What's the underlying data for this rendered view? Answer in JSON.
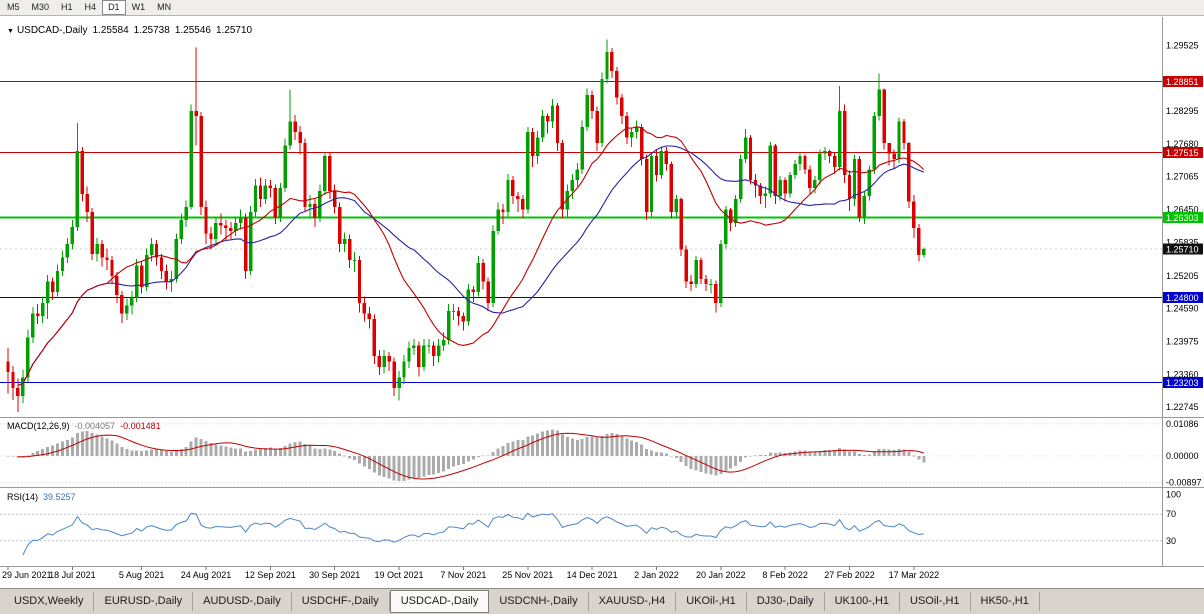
{
  "toolbar": {
    "timeframes": [
      "M5",
      "M30",
      "H1",
      "H4",
      "D1",
      "W1",
      "MN"
    ],
    "active": "D1"
  },
  "chart_header": {
    "symbol": "USDCAD-,Daily",
    "open": "1.25584",
    "high": "1.25738",
    "low": "1.25546",
    "close": "1.25710"
  },
  "indicators": {
    "macd": {
      "label": "MACD(12,26,9)",
      "value_main": "-0.004057",
      "value_signal": "-0.001481",
      "axis_labels": [
        "0.01086",
        "0.00000",
        "-0.00897"
      ],
      "axis_values": [
        0.01086,
        0.0,
        -0.00897
      ]
    },
    "rsi": {
      "label": "RSI(14)",
      "value": "39.5257",
      "axis_labels": [
        "100",
        "70",
        "30"
      ],
      "axis_values": [
        100,
        70,
        30
      ],
      "levels": [
        70,
        30
      ]
    }
  },
  "price_axis": {
    "labels": [
      "1.29525",
      "1.28295",
      "1.27680",
      "1.27065",
      "1.26450",
      "1.25835",
      "1.25205",
      "1.24590",
      "1.23975",
      "1.23360",
      "1.22745"
    ]
  },
  "levels": [
    {
      "price": 1.28851,
      "label": "1.28851",
      "color": "#cc0000",
      "width": 1
    },
    {
      "price": 1.27515,
      "label": "1.27515",
      "color": "#cc0000",
      "width": 1
    },
    {
      "price": 1.26303,
      "label": "1.26303",
      "color": "#00c400",
      "width": 2
    },
    {
      "price": 1.248,
      "label": "1.24800",
      "color": "#0000d0",
      "width": 1
    },
    {
      "price": 1.23203,
      "label": "1.23203",
      "color": "#0000d0",
      "width": 1
    }
  ],
  "current_price": {
    "value": 1.2571,
    "label": "1.25710",
    "tag_color": "#111111"
  },
  "tabs": {
    "items": [
      {
        "label": "USDX,Weekly",
        "active": false
      },
      {
        "label": "EURUSD-,Daily",
        "active": false
      },
      {
        "label": "AUDUSD-,Daily",
        "active": false
      },
      {
        "label": "USDCHF-,Daily",
        "active": false
      },
      {
        "label": "USDCAD-,Daily",
        "active": true
      },
      {
        "label": "USDCNH-,Daily",
        "active": false
      },
      {
        "label": "XAUUSD-,H4",
        "active": false
      },
      {
        "label": "UKOil-,H1",
        "active": false
      },
      {
        "label": "DJ30-,Daily",
        "active": false
      },
      {
        "label": "UK100-,H1",
        "active": false
      },
      {
        "label": "USOil-,H1",
        "active": false
      },
      {
        "label": "HK50-,H1",
        "active": false
      }
    ]
  },
  "chart_data": {
    "type": "candlestick",
    "title": "USDCAD-,Daily",
    "ylim": [
      1.2256,
      1.3006
    ],
    "macd_ylim": [
      -0.0105,
      0.0125
    ],
    "rsi_ylim": [
      -8,
      108
    ],
    "open_first": 1.236,
    "ma_periods": {
      "fast": 21,
      "slow": 34
    },
    "colors": {
      "up": "#00a000",
      "down": "#dd0000",
      "ma_fast": "#c00000",
      "ma_slow": "#2525a0",
      "macd_hist": "#ababab",
      "macd_signal": "#c00000",
      "rsi": "#4a86c8",
      "grid": "#c8c8c8"
    },
    "x_ticks": [
      {
        "label": "29 Jun 2021",
        "index": 0
      },
      {
        "label": "18 Jul 2021",
        "index": 13
      },
      {
        "label": "5 Aug 2021",
        "index": 27
      },
      {
        "label": "24 Aug 2021",
        "index": 40
      },
      {
        "label": "12 Sep 2021",
        "index": 53
      },
      {
        "label": "30 Sep 2021",
        "index": 66
      },
      {
        "label": "19 Oct 2021",
        "index": 79
      },
      {
        "label": "7 Nov 2021",
        "index": 92
      },
      {
        "label": "25 Nov 2021",
        "index": 105
      },
      {
        "label": "14 Dec 2021",
        "index": 118
      },
      {
        "label": "2 Jan 2022",
        "index": 131
      },
      {
        "label": "20 Jan 2022",
        "index": 144
      },
      {
        "label": "8 Feb 2022",
        "index": 157
      },
      {
        "label": "27 Feb 2022",
        "index": 170
      },
      {
        "label": "17 Mar 2022",
        "index": 183
      }
    ],
    "candles": [
      [
        1.2385,
        1.23,
        1.234
      ],
      [
        1.2352,
        1.2288,
        1.231
      ],
      [
        1.2328,
        1.2265,
        1.2295
      ],
      [
        1.2345,
        1.2282,
        1.233
      ],
      [
        1.242,
        1.2322,
        1.2405
      ],
      [
        1.2462,
        1.2395,
        1.245
      ],
      [
        1.2468,
        1.243,
        1.2445
      ],
      [
        1.2482,
        1.2432,
        1.247
      ],
      [
        1.2522,
        1.244,
        1.251
      ],
      [
        1.2518,
        1.2475,
        1.249
      ],
      [
        1.2542,
        1.2482,
        1.253
      ],
      [
        1.2568,
        1.252,
        1.2555
      ],
      [
        1.2592,
        1.2545,
        1.258
      ],
      [
        1.2625,
        1.257,
        1.2612
      ],
      [
        1.2807,
        1.2605,
        1.2755
      ],
      [
        1.2762,
        1.266,
        1.2674
      ],
      [
        1.2688,
        1.2622,
        1.264
      ],
      [
        1.2648,
        1.255,
        1.2562
      ],
      [
        1.2592,
        1.2548,
        1.258
      ],
      [
        1.2588,
        1.2538,
        1.2555
      ],
      [
        1.2572,
        1.2532,
        1.255
      ],
      [
        1.2558,
        1.2504,
        1.252
      ],
      [
        1.2528,
        1.247,
        1.2485
      ],
      [
        1.2492,
        1.2432,
        1.245
      ],
      [
        1.2478,
        1.2438,
        1.2465
      ],
      [
        1.2492,
        1.2448,
        1.248
      ],
      [
        1.2552,
        1.2472,
        1.254
      ],
      [
        1.2548,
        1.2488,
        1.25
      ],
      [
        1.2572,
        1.2492,
        1.256
      ],
      [
        1.2592,
        1.2548,
        1.258
      ],
      [
        1.2588,
        1.254,
        1.2555
      ],
      [
        1.2562,
        1.2515,
        1.253
      ],
      [
        1.2542,
        1.2495,
        1.251
      ],
      [
        1.253,
        1.249,
        1.2515
      ],
      [
        1.26,
        1.2508,
        1.259
      ],
      [
        1.2638,
        1.258,
        1.2625
      ],
      [
        1.2662,
        1.2612,
        1.265
      ],
      [
        1.2842,
        1.2645,
        1.283
      ],
      [
        1.2949,
        1.2765,
        1.282
      ],
      [
        1.2828,
        1.2635,
        1.265
      ],
      [
        1.2662,
        1.258,
        1.26
      ],
      [
        1.2612,
        1.257,
        1.259
      ],
      [
        1.2632,
        1.2582,
        1.262
      ],
      [
        1.2638,
        1.2598,
        1.2615
      ],
      [
        1.2625,
        1.2588,
        1.261
      ],
      [
        1.2622,
        1.259,
        1.2605
      ],
      [
        1.2632,
        1.2595,
        1.262
      ],
      [
        1.2645,
        1.2608,
        1.263
      ],
      [
        1.2638,
        1.2515,
        1.253
      ],
      [
        1.2652,
        1.2522,
        1.264
      ],
      [
        1.2702,
        1.2632,
        1.269
      ],
      [
        1.2705,
        1.265,
        1.2665
      ],
      [
        1.2702,
        1.2655,
        1.269
      ],
      [
        1.27,
        1.2668,
        1.2685
      ],
      [
        1.2692,
        1.2618,
        1.263
      ],
      [
        1.2695,
        1.2622,
        1.2685
      ],
      [
        1.2778,
        1.2678,
        1.2765
      ],
      [
        1.287,
        1.2758,
        1.281
      ],
      [
        1.2822,
        1.2775,
        1.279
      ],
      [
        1.2802,
        1.2748,
        1.277
      ],
      [
        1.2778,
        1.264,
        1.265
      ],
      [
        1.2672,
        1.2632,
        1.2655
      ],
      [
        1.2665,
        1.2612,
        1.263
      ],
      [
        1.2692,
        1.2622,
        1.268
      ],
      [
        1.2752,
        1.2672,
        1.2745
      ],
      [
        1.2752,
        1.2665,
        1.268
      ],
      [
        1.2692,
        1.2638,
        1.265
      ],
      [
        1.2658,
        1.2565,
        1.258
      ],
      [
        1.2602,
        1.2565,
        1.259
      ],
      [
        1.2598,
        1.2535,
        1.255
      ],
      [
        1.2565,
        1.2528,
        1.255
      ],
      [
        1.2558,
        1.2452,
        1.247
      ],
      [
        1.2482,
        1.2435,
        1.245
      ],
      [
        1.2462,
        1.2422,
        1.244
      ],
      [
        1.2448,
        1.2355,
        1.237
      ],
      [
        1.2382,
        1.2335,
        1.235
      ],
      [
        1.2382,
        1.2338,
        1.237
      ],
      [
        1.2378,
        1.2342,
        1.236
      ],
      [
        1.2368,
        1.2295,
        1.231
      ],
      [
        1.2342,
        1.2287,
        1.233
      ],
      [
        1.2372,
        1.2318,
        1.236
      ],
      [
        1.2398,
        1.2348,
        1.2385
      ],
      [
        1.2402,
        1.2372,
        1.239
      ],
      [
        1.2398,
        1.2332,
        1.235
      ],
      [
        1.2402,
        1.2342,
        1.239
      ],
      [
        1.2402,
        1.2375,
        1.239
      ],
      [
        1.2398,
        1.2352,
        1.237
      ],
      [
        1.2402,
        1.2358,
        1.239
      ],
      [
        1.2415,
        1.238,
        1.24
      ],
      [
        1.2468,
        1.2392,
        1.2455
      ],
      [
        1.2468,
        1.2438,
        1.2455
      ],
      [
        1.2462,
        1.2428,
        1.2445
      ],
      [
        1.2452,
        1.2418,
        1.2435
      ],
      [
        1.2505,
        1.2428,
        1.2495
      ],
      [
        1.2502,
        1.2472,
        1.249
      ],
      [
        1.2558,
        1.2482,
        1.2545
      ],
      [
        1.2552,
        1.2495,
        1.251
      ],
      [
        1.2518,
        1.2455,
        1.247
      ],
      [
        1.2615,
        1.2462,
        1.2605
      ],
      [
        1.2658,
        1.2598,
        1.2645
      ],
      [
        1.2655,
        1.2618,
        1.264
      ],
      [
        1.2712,
        1.2632,
        1.27
      ],
      [
        1.2708,
        1.2655,
        1.267
      ],
      [
        1.2678,
        1.264,
        1.2665
      ],
      [
        1.2672,
        1.2628,
        1.2645
      ],
      [
        1.28,
        1.2638,
        1.279
      ],
      [
        1.2798,
        1.2725,
        1.2745
      ],
      [
        1.2792,
        1.273,
        1.278
      ],
      [
        1.2832,
        1.2772,
        1.282
      ],
      [
        1.2825,
        1.2788,
        1.281
      ],
      [
        1.2852,
        1.2798,
        1.284
      ],
      [
        1.2845,
        1.2755,
        1.277
      ],
      [
        1.2775,
        1.2628,
        1.2645
      ],
      [
        1.2692,
        1.2632,
        1.268
      ],
      [
        1.2712,
        1.2665,
        1.27
      ],
      [
        1.2732,
        1.2688,
        1.272
      ],
      [
        1.2812,
        1.2712,
        1.28
      ],
      [
        1.2872,
        1.2792,
        1.286
      ],
      [
        1.2868,
        1.2815,
        1.283
      ],
      [
        1.2838,
        1.2755,
        1.277
      ],
      [
        1.2902,
        1.2762,
        1.289
      ],
      [
        1.2964,
        1.2882,
        1.294
      ],
      [
        1.2948,
        1.2892,
        1.2905
      ],
      [
        1.2912,
        1.2842,
        1.2855
      ],
      [
        1.2862,
        1.2805,
        1.282
      ],
      [
        1.2828,
        1.2768,
        1.278
      ],
      [
        1.2798,
        1.2762,
        1.279
      ],
      [
        1.2812,
        1.2778,
        1.28
      ],
      [
        1.2805,
        1.2728,
        1.274
      ],
      [
        1.2748,
        1.2625,
        1.264
      ],
      [
        1.2752,
        1.2632,
        1.2745
      ],
      [
        1.2758,
        1.2698,
        1.271
      ],
      [
        1.2762,
        1.2702,
        1.2755
      ],
      [
        1.2762,
        1.2718,
        1.273
      ],
      [
        1.2735,
        1.2628,
        1.264
      ],
      [
        1.2672,
        1.263,
        1.2665
      ],
      [
        1.2668,
        1.2558,
        1.257
      ],
      [
        1.2578,
        1.2498,
        1.251
      ],
      [
        1.2522,
        1.2492,
        1.2505
      ],
      [
        1.2558,
        1.2498,
        1.255
      ],
      [
        1.2555,
        1.2505,
        1.2515
      ],
      [
        1.2522,
        1.2492,
        1.2505
      ],
      [
        1.2515,
        1.2488,
        1.2505
      ],
      [
        1.2512,
        1.2452,
        1.247
      ],
      [
        1.2588,
        1.2462,
        1.258
      ],
      [
        1.2652,
        1.2572,
        1.2645
      ],
      [
        1.2648,
        1.2605,
        1.262
      ],
      [
        1.2672,
        1.2612,
        1.2665
      ],
      [
        1.2748,
        1.2658,
        1.274
      ],
      [
        1.2796,
        1.2732,
        1.278
      ],
      [
        1.2785,
        1.2692,
        1.27
      ],
      [
        1.2712,
        1.2668,
        1.269
      ],
      [
        1.2695,
        1.2655,
        1.267
      ],
      [
        1.2688,
        1.2648,
        1.2675
      ],
      [
        1.2772,
        1.2668,
        1.2765
      ],
      [
        1.2768,
        1.2655,
        1.267
      ],
      [
        1.2708,
        1.2662,
        1.27
      ],
      [
        1.2705,
        1.266,
        1.2675
      ],
      [
        1.2715,
        1.2668,
        1.271
      ],
      [
        1.2738,
        1.2702,
        1.273
      ],
      [
        1.2752,
        1.2718,
        1.2745
      ],
      [
        1.2748,
        1.2712,
        1.272
      ],
      [
        1.2728,
        1.2672,
        1.2685
      ],
      [
        1.2708,
        1.2675,
        1.27
      ],
      [
        1.2758,
        1.2692,
        1.275
      ],
      [
        1.2762,
        1.2738,
        1.2755
      ],
      [
        1.2758,
        1.2732,
        1.2745
      ],
      [
        1.2752,
        1.2712,
        1.2725
      ],
      [
        1.2877,
        1.2718,
        1.283
      ],
      [
        1.2842,
        1.2695,
        1.271
      ],
      [
        1.2718,
        1.2642,
        1.2665
      ],
      [
        1.2748,
        1.2652,
        1.274
      ],
      [
        1.2745,
        1.2622,
        1.263
      ],
      [
        1.2678,
        1.2618,
        1.267
      ],
      [
        1.2728,
        1.2662,
        1.272
      ],
      [
        1.2828,
        1.2712,
        1.282
      ],
      [
        1.29,
        1.2812,
        1.287
      ],
      [
        1.2872,
        1.2758,
        1.277
      ],
      [
        1.2762,
        1.2728,
        1.275
      ],
      [
        1.2758,
        1.2722,
        1.274
      ],
      [
        1.2818,
        1.2732,
        1.281
      ],
      [
        1.2815,
        1.2758,
        1.277
      ],
      [
        1.2772,
        1.2648,
        1.266
      ],
      [
        1.2672,
        1.2592,
        1.261
      ],
      [
        1.2618,
        1.2548,
        1.256
      ],
      [
        1.25738,
        1.25546,
        1.2571
      ]
    ]
  }
}
